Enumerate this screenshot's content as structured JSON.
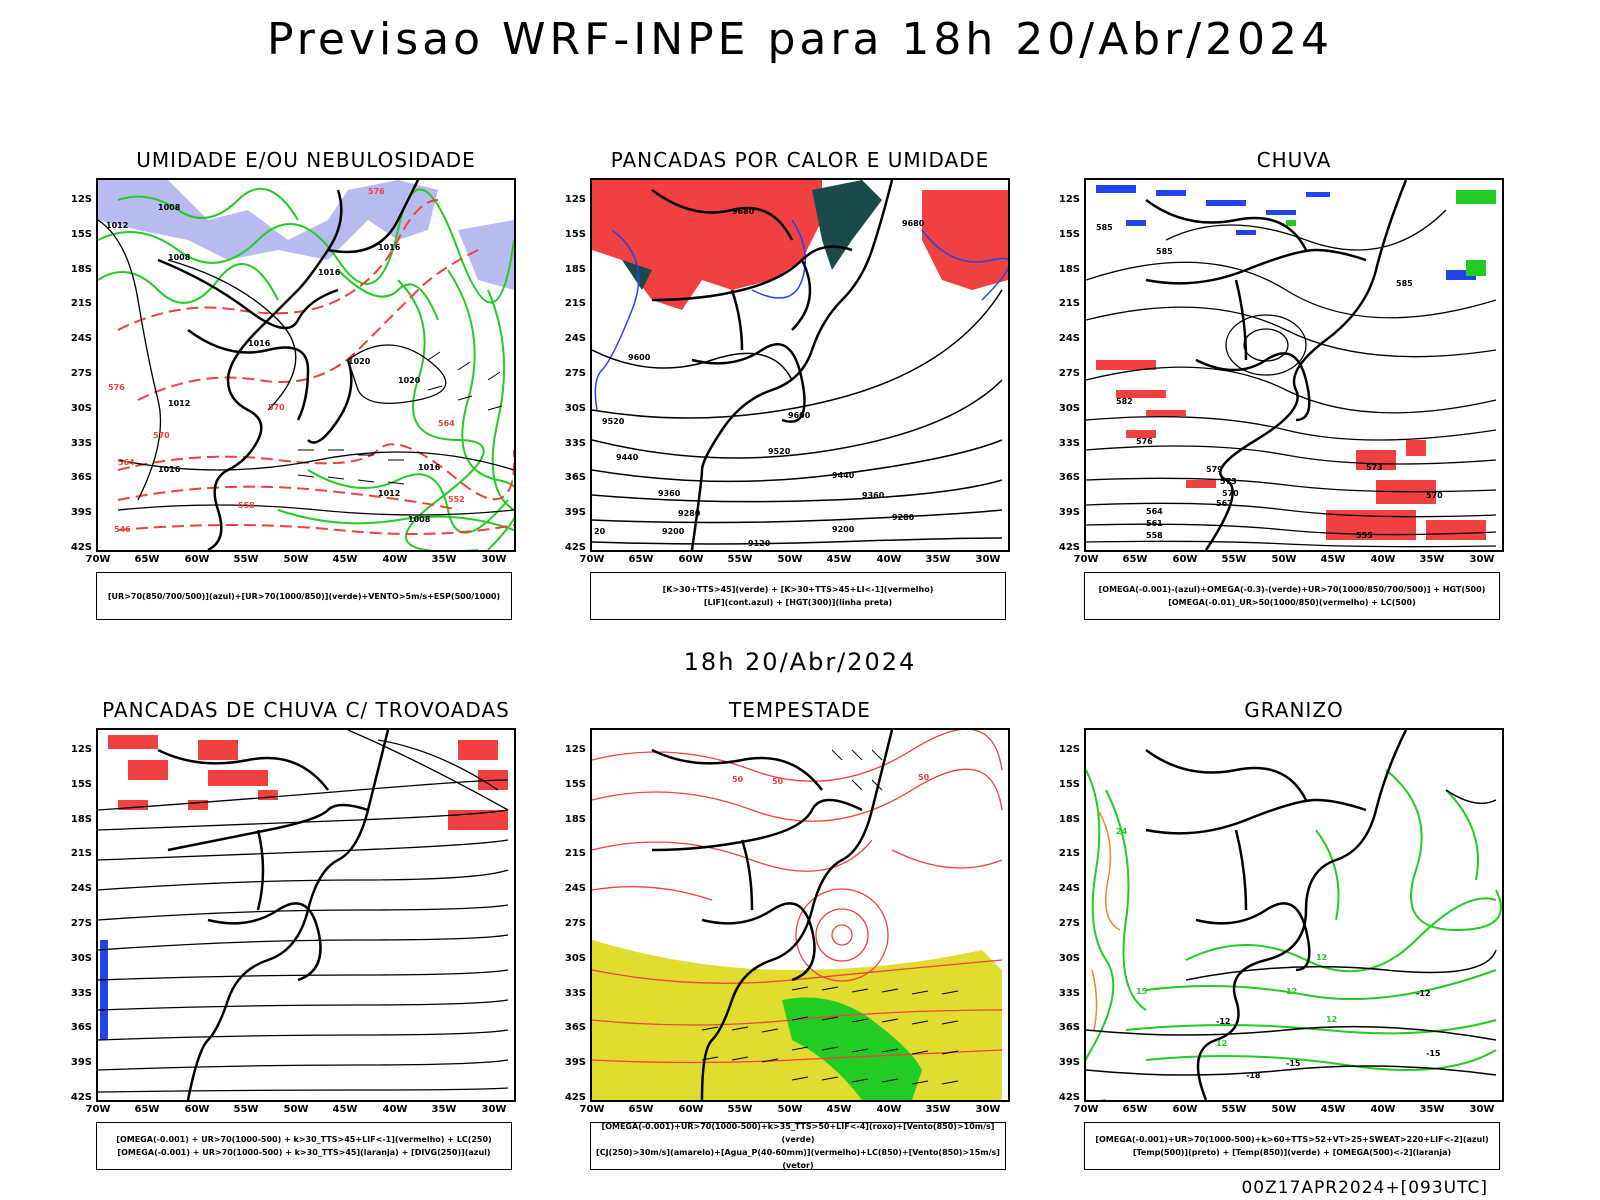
{
  "header": {
    "title": "Previsao WRF-INPE  para 18h 20/Abr/2024",
    "mid_title": "18h 20/Abr/2024",
    "footer": "00Z17APR2024+[093UTC]"
  },
  "axis": {
    "lat_labels": [
      "12S",
      "15S",
      "18S",
      "21S",
      "24S",
      "27S",
      "30S",
      "33S",
      "36S",
      "39S",
      "42S"
    ],
    "lon_labels": [
      "70W",
      "65W",
      "60W",
      "55W",
      "50W",
      "45W",
      "40W",
      "35W",
      "30W"
    ]
  },
  "colors": {
    "red": "#f04040",
    "green": "#22cc22",
    "blue": "#2244ee",
    "lavender": "#b0b4ee",
    "dark_teal": "#1a4a4a",
    "yellow": "#e0dc30",
    "orange": "#ee8822",
    "black": "#000000"
  },
  "panels": [
    {
      "id": "umidade",
      "title": "UMIDADE E/OU NEBULOSIDADE",
      "legend": [
        "[UR>70(850/700/500)](azul)+[UR>70(1000/850)](verde)+VENTO>5m/s+ESP(500/1000)"
      ],
      "contour_labels": [
        {
          "text": "1008"
        },
        {
          "text": "1008"
        },
        {
          "text": "1012"
        },
        {
          "text": "1016"
        },
        {
          "text": "1016"
        },
        {
          "text": "1016"
        },
        {
          "text": "1020"
        },
        {
          "text": "1020"
        },
        {
          "text": "1012"
        },
        {
          "text": "1016"
        },
        {
          "text": "1012"
        },
        {
          "text": "1016"
        },
        {
          "text": "1008"
        },
        {
          "text": "576"
        },
        {
          "text": "570"
        },
        {
          "text": "564"
        },
        {
          "text": "570"
        },
        {
          "text": "564"
        },
        {
          "text": "558"
        },
        {
          "text": "546"
        },
        {
          "text": "552"
        },
        {
          "text": "576"
        }
      ]
    },
    {
      "id": "pancadas_calor",
      "title": "PANCADAS POR CALOR E UMIDADE",
      "legend": [
        "[K>30+TTS>45](verde) + [K>30+TTS>45+LI<-1](vermelho)",
        "[LIF](cont.azul) + [HGT(300)](linha preta)"
      ],
      "contour_labels": [
        {
          "text": "9680"
        },
        {
          "text": "9680"
        },
        {
          "text": "9600"
        },
        {
          "text": "9600"
        },
        {
          "text": "9520"
        },
        {
          "text": "9520"
        },
        {
          "text": "9440"
        },
        {
          "text": "9440"
        },
        {
          "text": "9360"
        },
        {
          "text": "9360"
        },
        {
          "text": "9280"
        },
        {
          "text": "9280"
        },
        {
          "text": "9200"
        },
        {
          "text": "9200"
        },
        {
          "text": "9120"
        },
        {
          "text": "20"
        }
      ]
    },
    {
      "id": "chuva",
      "title": "CHUVA",
      "legend": [
        "[OMEGA(-0.001)-(azul)+OMEGA(-0.3)-(verde)+UR>70(1000/850/700/500)] + HGT(500)",
        "[OMEGA(-0.01)_UR>50(1000/850)(vermelho) + LC(500)"
      ],
      "contour_labels": [
        {
          "text": "585"
        },
        {
          "text": "585"
        },
        {
          "text": "585"
        },
        {
          "text": "582"
        },
        {
          "text": "579"
        },
        {
          "text": "576"
        },
        {
          "text": "573"
        },
        {
          "text": "570"
        },
        {
          "text": "567"
        },
        {
          "text": "564"
        },
        {
          "text": "561"
        },
        {
          "text": "558"
        },
        {
          "text": "555"
        },
        {
          "text": "573"
        },
        {
          "text": "570"
        }
      ]
    },
    {
      "id": "trovoadas",
      "title": "PANCADAS DE CHUVA C/ TROVOADAS",
      "legend": [
        "[OMEGA(-0.001) + UR>70(1000-500) + k>30_TTS>45+LIF<-1](vermelho) + LC(250)",
        "[OMEGA(-0.001) + UR>70(1000-500) + k>30_TTS>45](laranja) + [DIVG(250)](azul)"
      ],
      "contour_labels": []
    },
    {
      "id": "tempestade",
      "title": "TEMPESTADE",
      "legend": [
        "[OMEGA(-0.001)+UR>70(1000-500)+k>35_TTS>50+LIF<-4](roxo)+[Vento(850)>10m/s](verde)",
        "[CJ(250)>30m/s](amarelo)+[Agua_P(40-60mm)](vermelho)+LC(850)+[Vento(850)>15m/s](vetor)"
      ],
      "contour_labels": [
        {
          "text": "50"
        },
        {
          "text": "50"
        },
        {
          "text": "50"
        }
      ]
    },
    {
      "id": "granizo",
      "title": "GRANIZO",
      "legend": [
        "[OMEGA(-0.001)+UR>70(1000-500)+k>60+TTS>52+VT>25+SWEAT>220+LIF<-2](azul)",
        "[Temp(500)](preto) + [Temp(850)](verde) + [OMEGA(500)<-2](laranja)"
      ],
      "contour_labels": [
        {
          "text": "-12"
        },
        {
          "text": "-12"
        },
        {
          "text": "-15"
        },
        {
          "text": "-15"
        },
        {
          "text": "-18"
        },
        {
          "text": "15"
        },
        {
          "text": "12"
        },
        {
          "text": "12"
        },
        {
          "text": "12"
        },
        {
          "text": "12"
        },
        {
          "text": "24"
        }
      ]
    }
  ]
}
